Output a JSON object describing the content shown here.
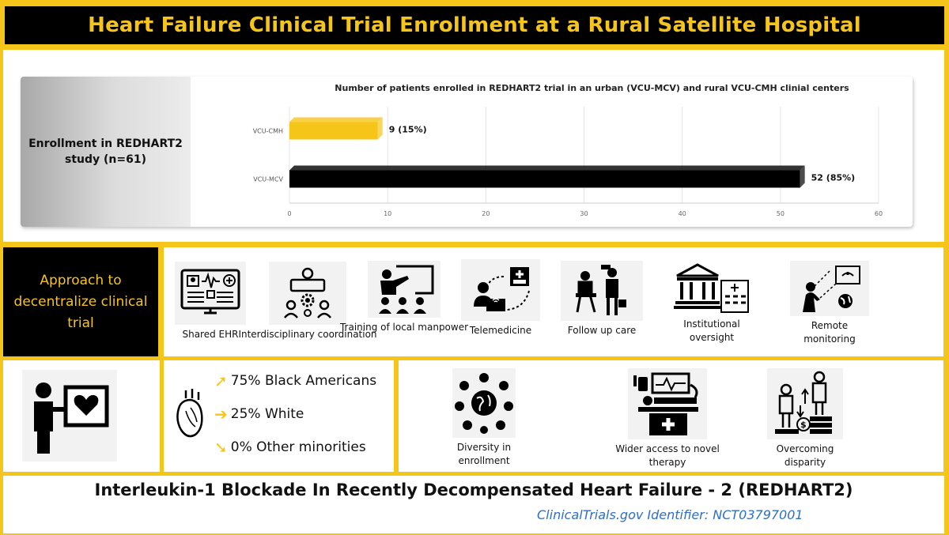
{
  "title": "Heart Failure Clinical Trial Enrollment at a Rural Satellite Hospital",
  "enrollment_label": "Enrollment in REDHART2 study (n=61)",
  "chart_data": {
    "type": "bar",
    "orientation": "horizontal",
    "title": "Number of patients enrolled in REDHART2 trial in an urban (VCU-MCV) and rural VCU-CMH clinial centers",
    "categories": [
      "VCU-CMH",
      "VCU-MCV"
    ],
    "values": [
      9,
      52
    ],
    "data_labels": [
      "9 (15%)",
      "52 (85%)"
    ],
    "colors": [
      "#f6c51a",
      "#000000"
    ],
    "xlim": [
      0,
      60
    ],
    "xticks": [
      0,
      10,
      20,
      30,
      40,
      50,
      60
    ],
    "grid": "vertical"
  },
  "approach": {
    "heading": "Approach to decentralize clinical trial",
    "items": [
      {
        "label": "Shared EHR",
        "icon": "ehr-monitor-icon"
      },
      {
        "label": "Interdisciplinary coordination",
        "icon": "team-gear-icon"
      },
      {
        "label": "Training of local manpower",
        "icon": "training-board-icon"
      },
      {
        "label": "Telemedicine",
        "icon": "telemedicine-icon"
      },
      {
        "label": "Follow up care",
        "icon": "doctor-patient-icon"
      },
      {
        "label": "Institutional oversight",
        "icon": "institution-icon"
      },
      {
        "label": "Remote monitoring",
        "icon": "remote-monitoring-icon"
      }
    ]
  },
  "demographics": [
    {
      "text": "75% Black Americans",
      "arrow": "up"
    },
    {
      "text": "25% White",
      "arrow": "right"
    },
    {
      "text": "0% Other minorities",
      "arrow": "down"
    }
  ],
  "benefits": [
    {
      "label": "Diversity in enrollment",
      "icon": "diversity-globe-icon"
    },
    {
      "label": "Wider access to novel therapy",
      "icon": "hospital-bed-icon"
    },
    {
      "label": "Overcoming disparity",
      "icon": "disparity-icon"
    }
  ],
  "footer": {
    "trial_name": "Interleukin-1 Blockade In Recently Decompensated Heart Failure - 2 (REDHART2)",
    "identifier": "ClinicalTrials.gov Identifier: NCT03797001"
  }
}
